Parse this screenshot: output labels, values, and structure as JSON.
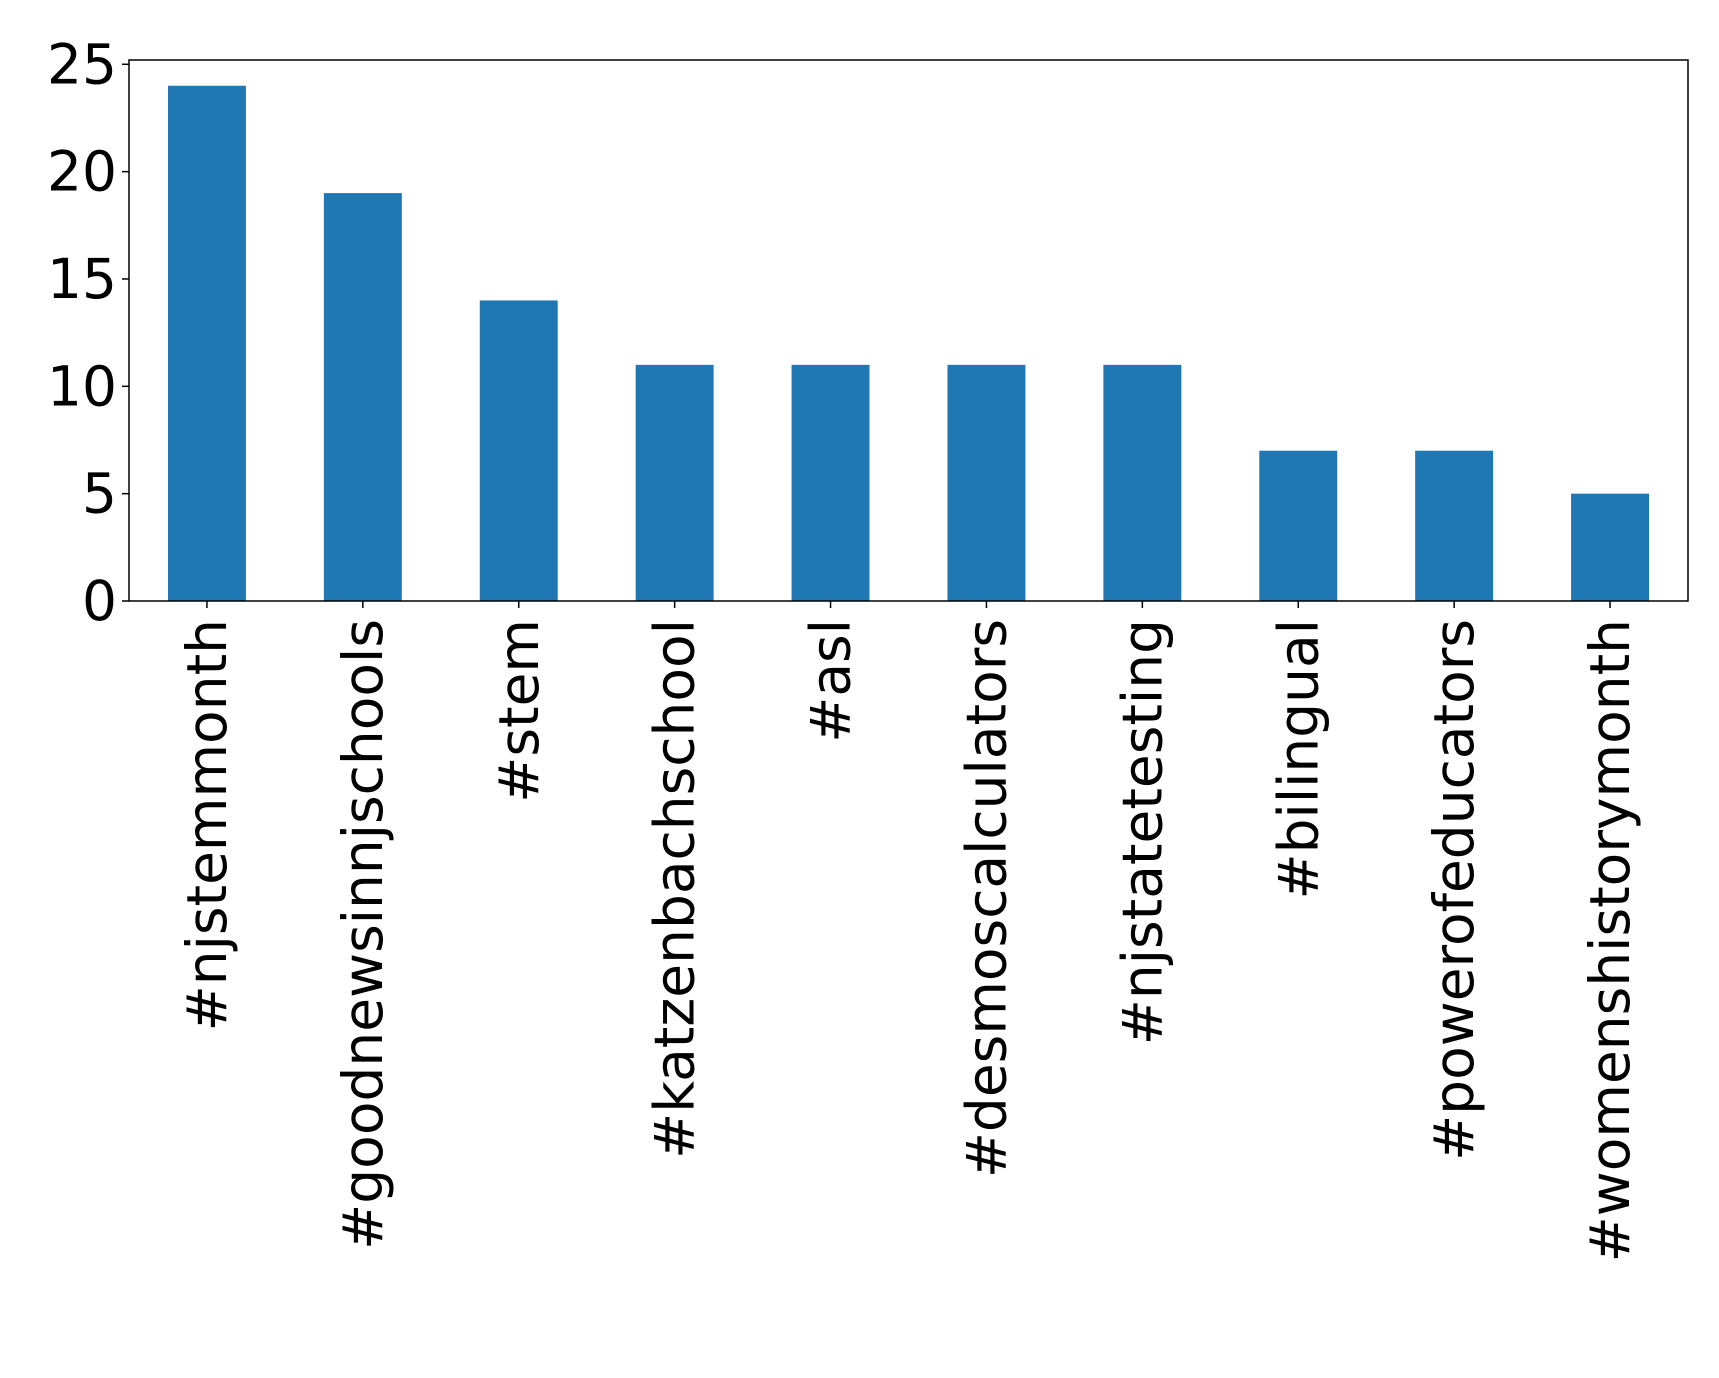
{
  "chart_data": {
    "type": "bar",
    "title": "",
    "xlabel": "",
    "ylabel": "",
    "categories": [
      "#njstemmonth",
      "#goodnewsinnjschools",
      "#stem",
      "#katzenbachschool",
      "#asl",
      "#desmoscalculators",
      "#njstatetesting",
      "#bilingual",
      "#powerofeducators",
      "#womenshistorymonth"
    ],
    "values": [
      24,
      19,
      14,
      11,
      11,
      11,
      11,
      7,
      7,
      5
    ],
    "ylim": [
      0,
      25.2
    ],
    "yticks": [
      0,
      5,
      10,
      15,
      20,
      25
    ],
    "grid": false,
    "legend": "none",
    "bar_color": "#1f77b4"
  }
}
